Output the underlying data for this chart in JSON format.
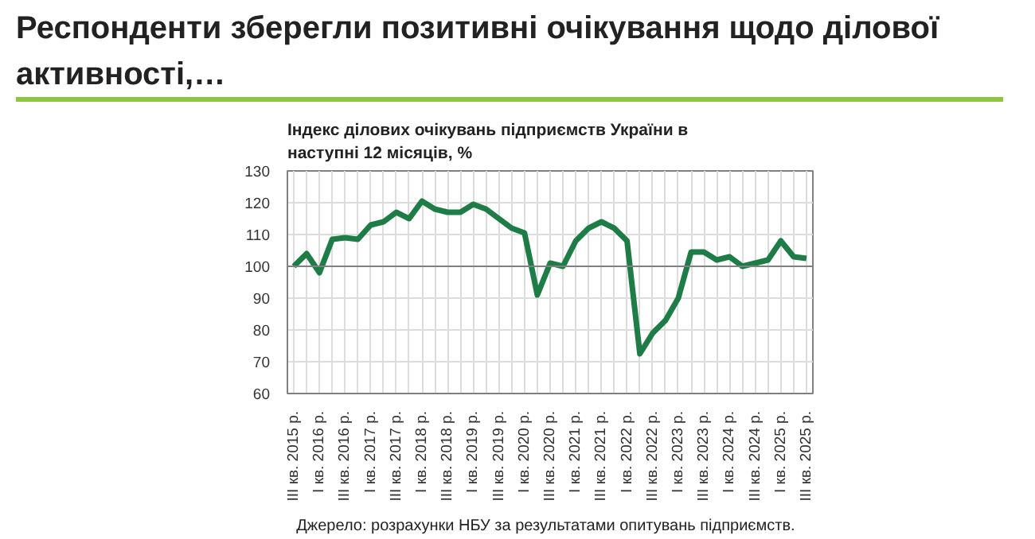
{
  "chart_data": {
    "type": "line",
    "title": "Респонденти зберегли позитивні очікування щодо ділової активності,…",
    "subtitle": "Індекс ділових очікувань підприємств України в наступні 12 місяців, %",
    "annotations": [
      "Джерело:  розрахунки  НБУ за результатами опитувань підприємств."
    ],
    "categories": [
      "III кв. 2015 р.",
      null,
      "I кв. 2016 р.",
      null,
      "III кв. 2016 р.",
      null,
      "I кв. 2017 р.",
      null,
      "III кв. 2017 р.",
      null,
      "I кв. 2018 р.",
      null,
      "III кв. 2018 р.",
      null,
      "I кв. 2019 р.",
      null,
      "III кв. 2019 р.",
      null,
      "I кв. 2020 р.",
      null,
      "III кв. 2020 р.",
      null,
      "I кв. 2021 р.",
      null,
      "III кв. 2021 р.",
      null,
      "I кв. 2022 р.",
      null,
      "III кв. 2022 р.",
      null,
      "I кв. 2023 р.",
      null,
      "III кв. 2023 р.",
      null,
      "I кв. 2024 р.",
      null,
      "III кв. 2024 р.",
      null,
      "I кв. 2025 р.",
      null,
      "III кв. 2025 р."
    ],
    "series": [
      {
        "color": "#1e7d47",
        "values": [
          100,
          104,
          98,
          108.5,
          109,
          108.5,
          113,
          114,
          117,
          115,
          120.5,
          118,
          117,
          117,
          119.5,
          118,
          115,
          112,
          110.5,
          91,
          101,
          100,
          108,
          112,
          114,
          112,
          108,
          72.5,
          79,
          83,
          90,
          104.5,
          104.5,
          102,
          103,
          100,
          101,
          102,
          108,
          103,
          102.5
        ]
      }
    ],
    "ylim": [
      60,
      130
    ],
    "yticks": [
      60,
      70,
      80,
      90,
      100,
      110,
      120,
      130
    ],
    "ref_lines": [
      {
        "axis": "y",
        "value": 100,
        "color": "#808080"
      }
    ],
    "grid": true,
    "marker": "none",
    "line_style": "solid"
  }
}
